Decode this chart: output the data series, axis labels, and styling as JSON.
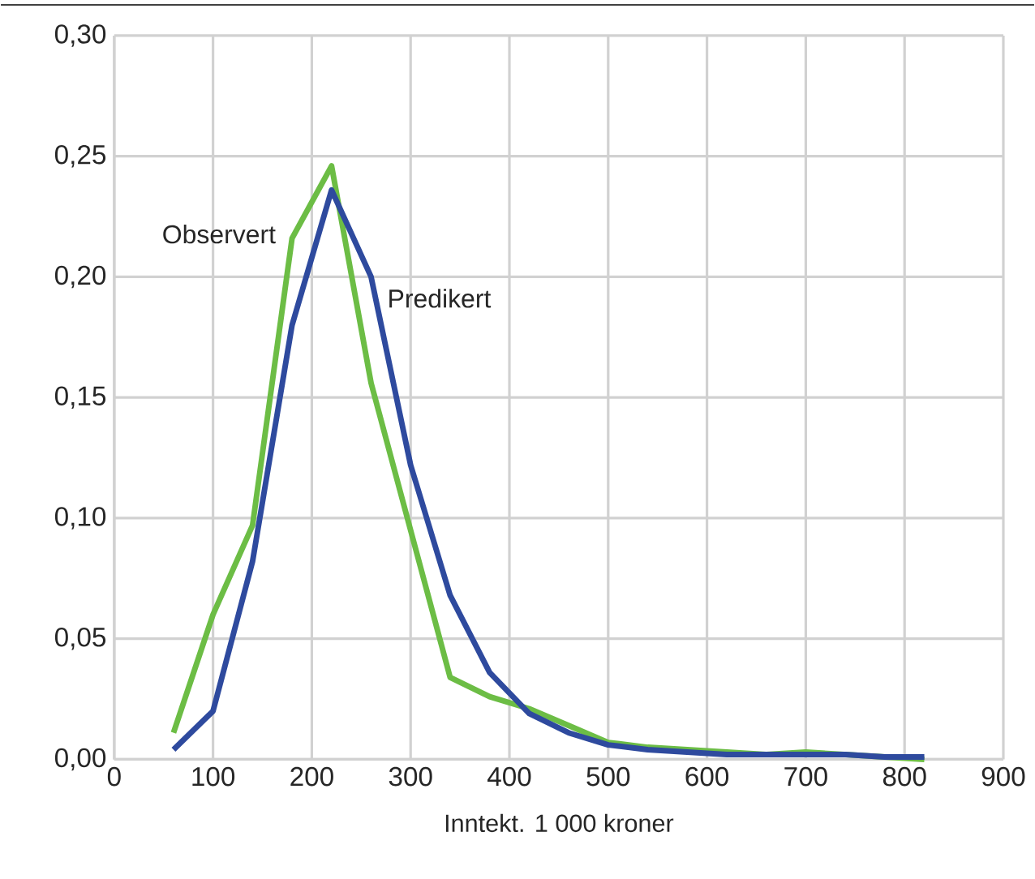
{
  "chart_data": {
    "type": "line",
    "xlabel": "Inntekt. 1 000 kroner",
    "xlim": [
      0,
      900
    ],
    "xticks": [
      0,
      100,
      200,
      300,
      400,
      500,
      600,
      700,
      800,
      900
    ],
    "ylim": [
      0,
      0.3
    ],
    "yticks": [
      {
        "value": 0,
        "label": "0,00"
      },
      {
        "value": 0.05,
        "label": "0,05"
      },
      {
        "value": 0.1,
        "label": "0,10"
      },
      {
        "value": 0.15,
        "label": "0,15"
      },
      {
        "value": 0.2,
        "label": "0,20"
      },
      {
        "value": 0.25,
        "label": "0,25"
      },
      {
        "value": 0.3,
        "label": "0,30"
      }
    ],
    "grid": true,
    "legend": false,
    "marker": "none",
    "line_style": "solid",
    "x": [
      60,
      100,
      140,
      180,
      220,
      260,
      300,
      340,
      380,
      420,
      460,
      500,
      540,
      580,
      620,
      660,
      700,
      740,
      780,
      820
    ],
    "series": [
      {
        "name": "Observert",
        "color": "#6cbd45",
        "values": [
          0.011,
          0.06,
          0.097,
          0.216,
          0.246,
          0.156,
          0.095,
          0.034,
          0.026,
          0.021,
          0.014,
          0.007,
          0.005,
          0.004,
          0.003,
          0.002,
          0.003,
          0.002,
          0.001,
          0.0
        ]
      },
      {
        "name": "Predikert",
        "color": "#2e4a9e",
        "values": [
          0.004,
          0.02,
          0.082,
          0.18,
          0.236,
          0.2,
          0.122,
          0.068,
          0.036,
          0.019,
          0.011,
          0.006,
          0.004,
          0.003,
          0.002,
          0.002,
          0.002,
          0.002,
          0.001,
          0.001
        ]
      }
    ]
  }
}
